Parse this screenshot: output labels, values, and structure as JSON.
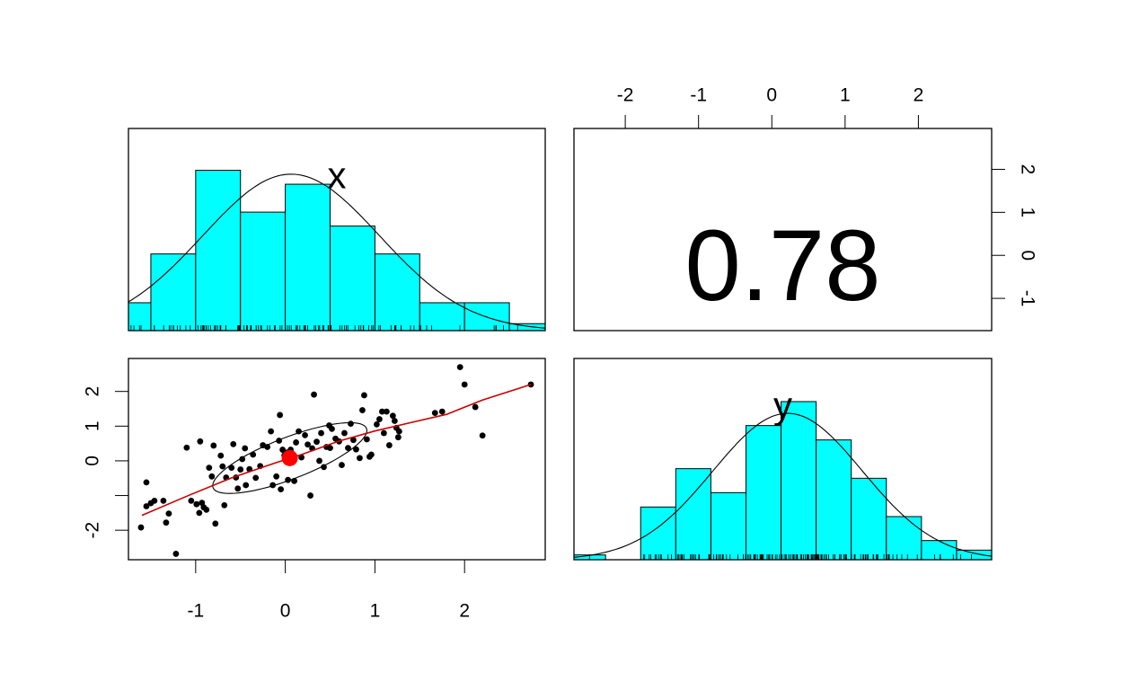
{
  "colors": {
    "bar_fill": "#00ffff",
    "point": "#000000",
    "smoother": "#cc0000",
    "centroid": "#ff0000",
    "background": "#ffffff"
  },
  "chart_data": [
    {
      "type": "histogram",
      "panel": "top-left",
      "label": "x",
      "bin_edges": [
        -1.75,
        -1.5,
        -1.0,
        -0.5,
        0.0,
        0.5,
        1.0,
        1.5,
        2.0,
        2.5,
        2.9
      ],
      "counts": [
        4,
        11,
        23,
        17,
        21,
        15,
        11,
        4,
        4,
        1
      ],
      "ylim": [
        0,
        29
      ],
      "density_curve": true,
      "rug": true,
      "grid": false
    },
    {
      "type": "text",
      "panel": "top-right",
      "correlation": "0.78",
      "x_axis": {
        "position": "top",
        "ticks": [
          "-2",
          "-1",
          "0",
          "1",
          "2"
        ],
        "range": [
          -2.7,
          3.0
        ]
      },
      "y_axis": {
        "position": "right",
        "ticks": [
          "-1",
          "0",
          "1",
          "2"
        ],
        "range": [
          -1.75,
          2.95
        ]
      }
    },
    {
      "type": "scatter",
      "panel": "bottom-left",
      "x_axis": {
        "position": "bottom",
        "ticks": [
          "-1",
          "0",
          "1",
          "2"
        ],
        "range": [
          -1.75,
          2.9
        ]
      },
      "y_axis": {
        "position": "left",
        "ticks": [
          "-2",
          "0",
          "1",
          "2"
        ],
        "range": [
          -2.85,
          2.95
        ]
      },
      "points": [
        [
          -1.61,
          -1.92
        ],
        [
          -1.55,
          -1.31
        ],
        [
          -1.5,
          -1.22
        ],
        [
          -1.55,
          -0.62
        ],
        [
          -1.46,
          -1.15
        ],
        [
          -1.36,
          -1.15
        ],
        [
          -1.33,
          -1.78
        ],
        [
          -1.3,
          -1.52
        ],
        [
          -1.22,
          -2.68
        ],
        [
          -1.1,
          0.38
        ],
        [
          -1.05,
          -1.15
        ],
        [
          -0.99,
          -1.25
        ],
        [
          -0.96,
          -1.5
        ],
        [
          -0.93,
          -1.21
        ],
        [
          -0.91,
          -1.34
        ],
        [
          -0.95,
          0.56
        ],
        [
          -0.88,
          -1.41
        ],
        [
          -0.85,
          -0.2
        ],
        [
          -0.82,
          -0.45
        ],
        [
          -0.8,
          0.44
        ],
        [
          -0.78,
          -1.81
        ],
        [
          -0.72,
          0.15
        ],
        [
          -0.7,
          -0.16
        ],
        [
          -0.68,
          -1.28
        ],
        [
          -0.66,
          -0.48
        ],
        [
          -0.6,
          -0.2
        ],
        [
          -0.58,
          0.48
        ],
        [
          -0.55,
          -0.48
        ],
        [
          -0.53,
          -0.8
        ],
        [
          -0.5,
          -0.25
        ],
        [
          -0.48,
          0.05
        ],
        [
          -0.45,
          0.36
        ],
        [
          -0.44,
          -0.7
        ],
        [
          -0.4,
          -0.24
        ],
        [
          -0.36,
          0.18
        ],
        [
          -0.33,
          -0.49
        ],
        [
          -0.28,
          -0.15
        ],
        [
          -0.25,
          0.45
        ],
        [
          -0.2,
          0.4
        ],
        [
          -0.16,
          0.85
        ],
        [
          -0.14,
          -0.7
        ],
        [
          -0.1,
          -0.45
        ],
        [
          -0.07,
          0.58
        ],
        [
          -0.05,
          -0.82
        ],
        [
          -0.03,
          0.32
        ],
        [
          -0.01,
          0.16
        ],
        [
          0.02,
          0.24
        ],
        [
          0.03,
          -0.55
        ],
        [
          0.06,
          0.32
        ],
        [
          0.09,
          0.0
        ],
        [
          -0.06,
          1.32
        ],
        [
          0.1,
          -0.58
        ],
        [
          0.12,
          0.53
        ],
        [
          0.15,
          0.85
        ],
        [
          0.18,
          0.1
        ],
        [
          0.22,
          0.74
        ],
        [
          0.25,
          0.47
        ],
        [
          0.28,
          -1.0
        ],
        [
          0.3,
          0.36
        ],
        [
          0.32,
          1.91
        ],
        [
          0.35,
          0.55
        ],
        [
          0.38,
          0.0
        ],
        [
          0.4,
          0.8
        ],
        [
          0.43,
          -0.18
        ],
        [
          0.46,
          0.4
        ],
        [
          0.49,
          1.02
        ],
        [
          0.5,
          0.37
        ],
        [
          0.52,
          0.92
        ],
        [
          0.56,
          0.64
        ],
        [
          0.6,
          0.56
        ],
        [
          0.63,
          -0.12
        ],
        [
          0.66,
          0.8
        ],
        [
          0.7,
          0.37
        ],
        [
          0.73,
          1.07
        ],
        [
          0.76,
          0.6
        ],
        [
          0.79,
          0.33
        ],
        [
          0.83,
          0.08
        ],
        [
          0.86,
          1.46
        ],
        [
          0.88,
          1.89
        ],
        [
          0.91,
          0.62
        ],
        [
          0.94,
          0.12
        ],
        [
          0.96,
          0.18
        ],
        [
          1.02,
          1.05
        ],
        [
          1.05,
          1.2
        ],
        [
          1.08,
          1.42
        ],
        [
          1.1,
          0.8
        ],
        [
          1.13,
          1.42
        ],
        [
          1.16,
          0.45
        ],
        [
          1.2,
          1.3
        ],
        [
          1.22,
          1.15
        ],
        [
          1.24,
          0.95
        ],
        [
          1.26,
          0.68
        ],
        [
          1.27,
          0.85
        ],
        [
          1.67,
          1.38
        ],
        [
          1.75,
          1.42
        ],
        [
          1.95,
          2.7
        ],
        [
          2.0,
          2.2
        ],
        [
          2.12,
          1.55
        ],
        [
          2.2,
          0.73
        ],
        [
          2.74,
          2.2
        ]
      ],
      "centroid": [
        0.05,
        0.08
      ],
      "smoother": [
        [
          -1.6,
          -1.57
        ],
        [
          -1.1,
          -1.02
        ],
        [
          -0.6,
          -0.49
        ],
        [
          -0.1,
          -0.05
        ],
        [
          0.2,
          0.2
        ],
        [
          0.6,
          0.57
        ],
        [
          1.0,
          0.86
        ],
        [
          1.4,
          1.1
        ],
        [
          1.8,
          1.34
        ],
        [
          2.2,
          1.75
        ],
        [
          2.74,
          2.2
        ]
      ],
      "ellipse": {
        "center": [
          0.05,
          0.08
        ],
        "sd_x": 0.86,
        "sd_y": 1.02,
        "r": 0.78,
        "level": 1.0
      },
      "grid": false
    },
    {
      "type": "histogram",
      "panel": "bottom-right",
      "label": "y",
      "bin_edges": [
        -2.95,
        -2.5,
        -2.0,
        -1.5,
        -1.0,
        -0.5,
        0.0,
        0.5,
        1.0,
        1.5,
        2.0,
        2.5,
        3.0
      ],
      "counts": [
        1,
        0,
        11,
        19,
        14,
        28,
        33,
        25,
        17,
        9,
        4,
        2
      ],
      "ylim": [
        0,
        42
      ],
      "density_curve": true,
      "rug": true,
      "grid": false
    }
  ]
}
